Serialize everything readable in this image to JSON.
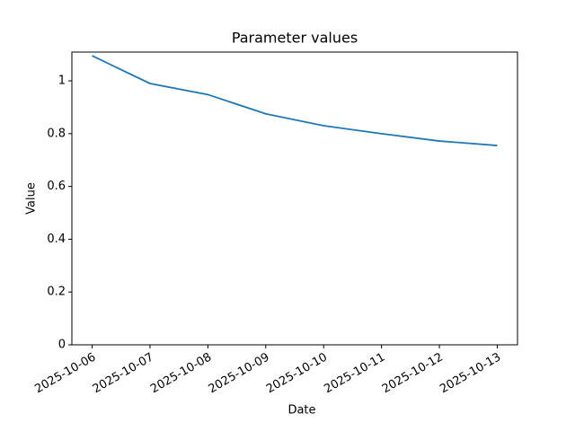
{
  "chart_data": {
    "type": "line",
    "title": "Parameter values",
    "x_label": "Date",
    "y_label": "Value",
    "x": [
      "2025-10-06",
      "2025-10-07",
      "2025-10-08",
      "2025-10-09",
      "2025-10-10",
      "2025-10-11",
      "2025-10-12",
      "2025-10-13"
    ],
    "series": [
      {
        "color": "#1f77b4",
        "values": [
          1.095,
          0.99,
          0.948,
          0.875,
          0.83,
          0.8,
          0.772,
          0.755
        ]
      }
    ],
    "ylim": [
      0,
      1.109
    ],
    "yticks": [
      0,
      0.2,
      0.4,
      0.6,
      0.8,
      1.0
    ],
    "xticks": [
      "2025-10-06",
      "2025-10-07",
      "2025-10-08",
      "2025-10-09",
      "2025-10-10",
      "2025-10-11",
      "2025-10-12",
      "2025-10-13"
    ],
    "yticks_labels_note_free": null
  }
}
